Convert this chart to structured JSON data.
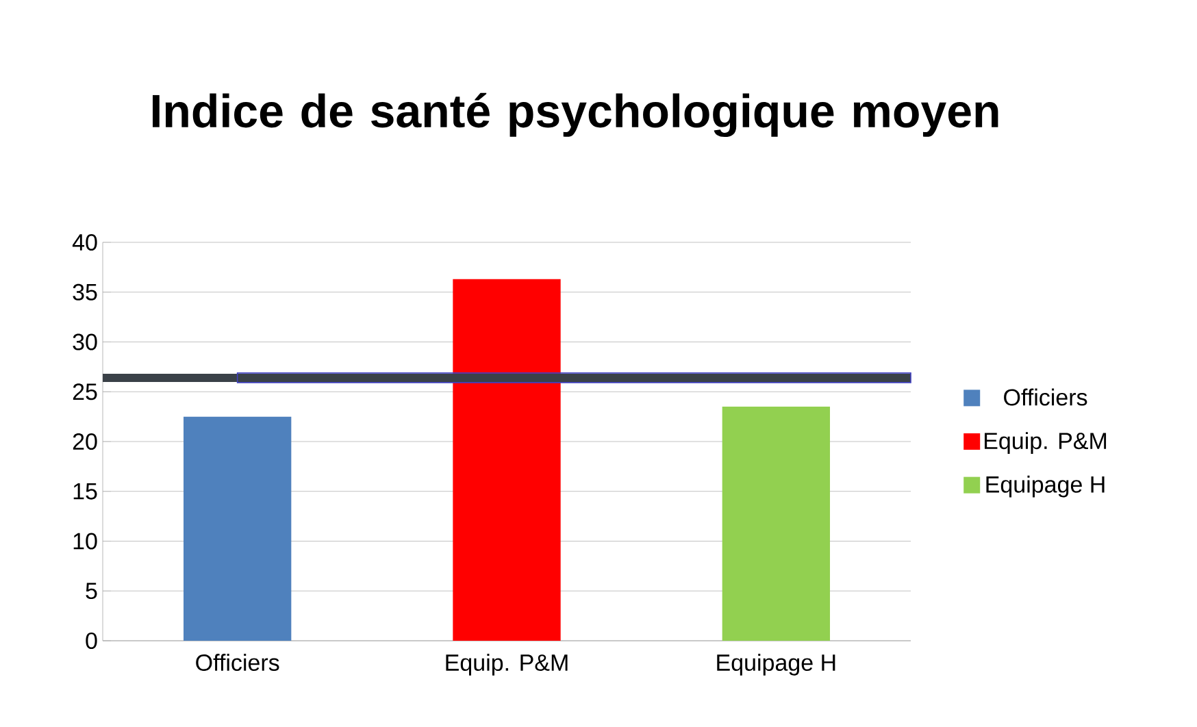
{
  "chart_data": {
    "type": "bar",
    "title": "Indice de santé psychologique moyen",
    "categories": [
      "Officiers",
      "Equip. P&M",
      "Equipage H"
    ],
    "series": [
      {
        "name": "Officiers",
        "color": "#4f81bd",
        "values": [
          22.5,
          null,
          null
        ]
      },
      {
        "name": "Equip. P&M",
        "color": "#ff0000",
        "values": [
          null,
          36.3,
          null
        ]
      },
      {
        "name": "Equipage H",
        "color": "#92d050",
        "values": [
          null,
          null,
          23.5
        ]
      }
    ],
    "ylim": [
      0,
      40
    ],
    "yticks": [
      0,
      5,
      10,
      15,
      20,
      25,
      30,
      35,
      40
    ],
    "grid": "y",
    "legend": "right",
    "ref_lines": [
      {
        "axis": "y",
        "value": 26.4,
        "color": "#3a4148"
      }
    ]
  }
}
